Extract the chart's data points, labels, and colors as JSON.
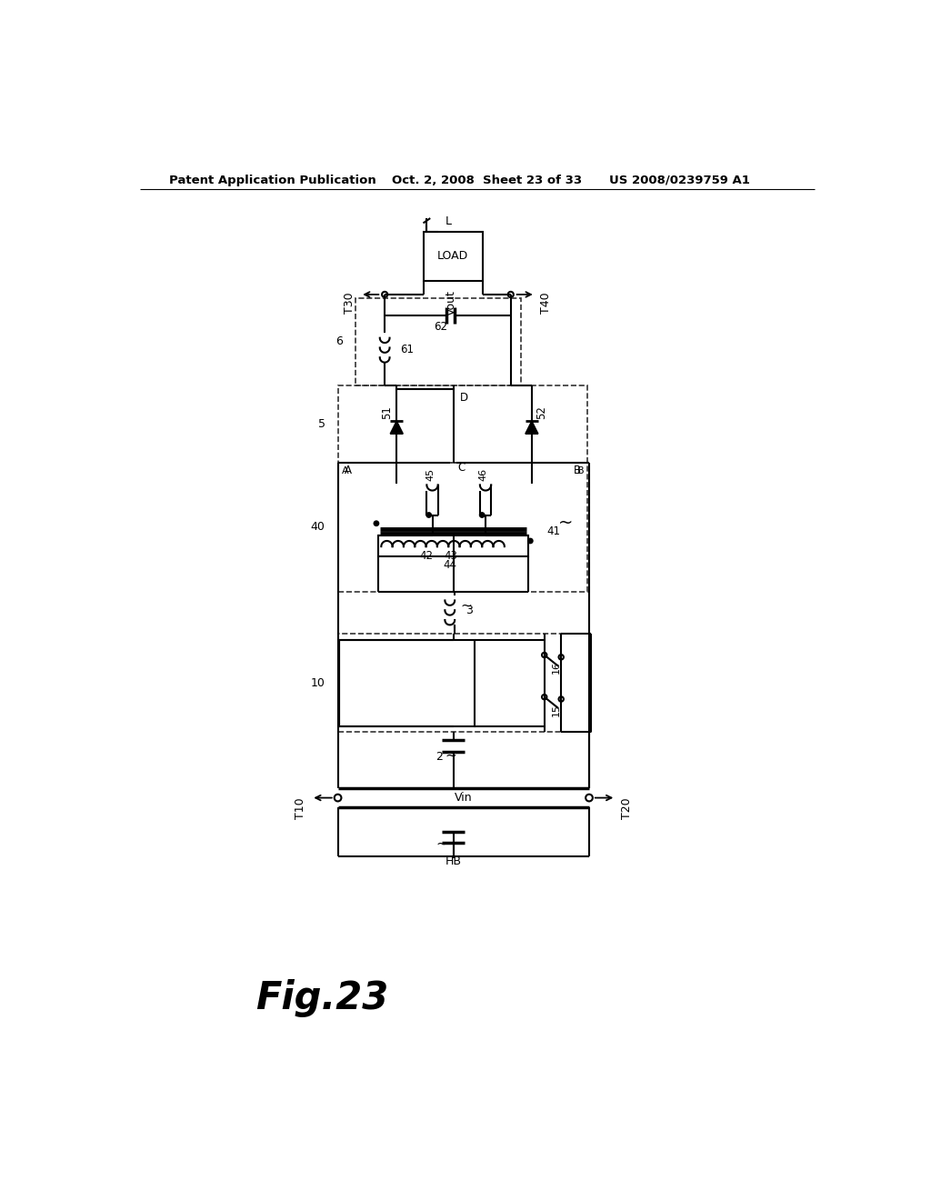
{
  "title_left": "Patent Application Publication",
  "title_center": "Oct. 2, 2008   Sheet 23 of 33",
  "title_right": "US 2008/0239759 A1",
  "fig_label": "Fig.23",
  "background": "#ffffff"
}
